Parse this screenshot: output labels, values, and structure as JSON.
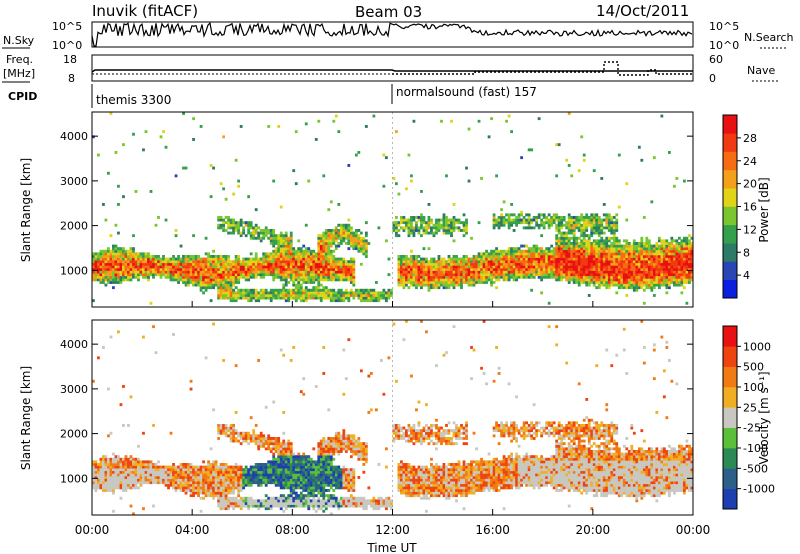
{
  "header": {
    "station": "Inuvik (fitACF)",
    "beam": "Beam 03",
    "date": "14/Oct/2011"
  },
  "panel_sky": {
    "left_label": "N.Sky",
    "left_ticks": [
      "10^5",
      "10^0"
    ],
    "right_ticks": [
      "10^5",
      "10^0"
    ],
    "right_label": "N.Search"
  },
  "panel_freq": {
    "left_label_1": "Freq.",
    "left_label_2": "[MHz]",
    "left_ticks": [
      "18",
      "8"
    ],
    "right_ticks": [
      "60",
      "0"
    ],
    "right_label": "Nave"
  },
  "panel_cpid": {
    "label": "CPID",
    "programs": [
      "themis 3300",
      "normalsound (fast) 157"
    ]
  },
  "chart_data": [
    {
      "type": "heatmap",
      "name": "power",
      "ylabel": "Slant Range [km]",
      "yticks": [
        "1000",
        "2000",
        "3000",
        "4000"
      ],
      "ylim": [
        180,
        4540
      ],
      "xlim": [
        0,
        24
      ],
      "colorbar_label": "Power [dB]",
      "colorbar_ticks": [
        "28",
        "24",
        "20",
        "16",
        "12",
        "8",
        "4"
      ],
      "colors": [
        "#0a1fe0",
        "#2a45b5",
        "#2d7a67",
        "#35a04c",
        "#7ac62e",
        "#e0d318",
        "#f5a019",
        "#f76b12",
        "#f23a10",
        "#e81010"
      ]
    },
    {
      "type": "heatmap",
      "name": "velocity",
      "ylabel": "Slant Range [km]",
      "yticks": [
        "1000",
        "2000",
        "3000",
        "4000"
      ],
      "ylim": [
        180,
        4540
      ],
      "xlim": [
        0,
        24
      ],
      "xticks": [
        "00:00",
        "04:00",
        "08:00",
        "12:00",
        "16:00",
        "20:00",
        "00:00"
      ],
      "xlabel": "Time UT",
      "colorbar_label": "Velocity [m s⁻¹]",
      "colorbar_ticks": [
        "1000",
        "500",
        "100",
        "25",
        "-25",
        "-100",
        "-500",
        "-1000"
      ],
      "colors": [
        "#1d3fb0",
        "#2c5f8a",
        "#2e8a55",
        "#5bbf3a",
        "#c8c8c0",
        "#f2ae22",
        "#f27a14",
        "#ee4410",
        "#e81010"
      ]
    }
  ]
}
